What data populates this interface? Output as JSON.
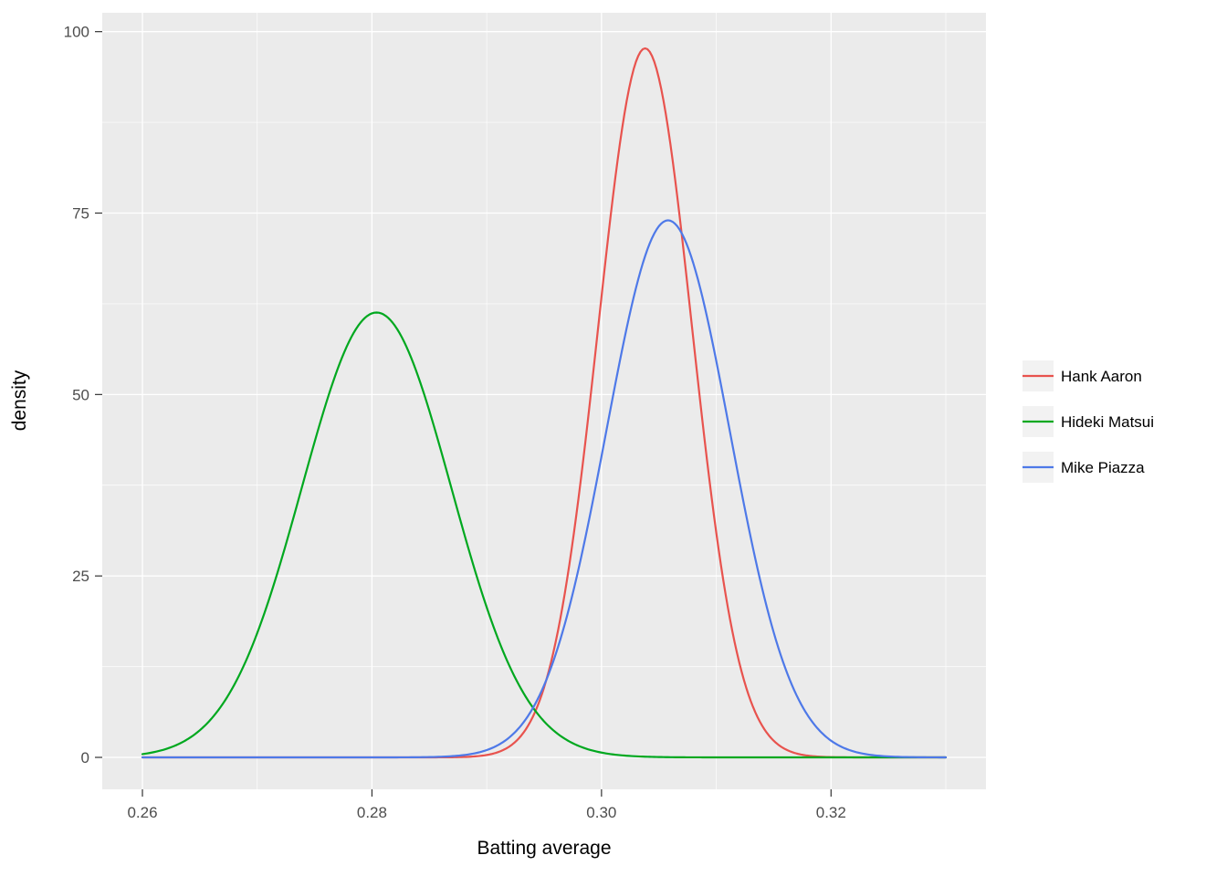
{
  "figure": {
    "background": "#ffffff",
    "panel_background": "#ebebeb",
    "grid_color": "#ffffff",
    "tick_color": "#333333",
    "tick_label_color": "#4d4d4d",
    "axis_title_color": "#000000",
    "legend_key_fill": "#f2f2f2"
  },
  "chart_data": {
    "type": "line",
    "subtype": "density-curves",
    "title": "",
    "xlabel": "Batting average",
    "ylabel": "density",
    "xlim": [
      0.2565,
      0.3335
    ],
    "ylim": [
      -4.4,
      102.6
    ],
    "grid": true,
    "legend_position": "right",
    "x_ticks": {
      "values": [
        0.26,
        0.28,
        0.3,
        0.32
      ],
      "labels": [
        "0.26",
        "0.28",
        "0.30",
        "0.32"
      ]
    },
    "x_minor_ticks": [
      0.27,
      0.29,
      0.31,
      0.33
    ],
    "y_ticks": {
      "values": [
        0,
        25,
        50,
        75,
        100
      ],
      "labels": [
        "0",
        "25",
        "50",
        "75",
        "100"
      ]
    },
    "y_minor_ticks": [
      12.5,
      37.5,
      62.5,
      87.5
    ],
    "sample_x": [
      0.26,
      0.265,
      0.27,
      0.275,
      0.28,
      0.285,
      0.29,
      0.295,
      0.3,
      0.305,
      0.31,
      0.315,
      0.32,
      0.325,
      0.33
    ],
    "series": [
      {
        "name": "Hank Aaron",
        "color": "#e8534e",
        "distribution": "normal-density",
        "mean": 0.3038,
        "sd": 0.00409,
        "peak_density": 97.7,
        "x_range": [
          0.26,
          0.33
        ],
        "sample_y": [
          0,
          0,
          0,
          0,
          0,
          0,
          0.3,
          9.7,
          63.4,
          93.6,
          31.0,
          2.3,
          0,
          0,
          0
        ]
      },
      {
        "name": "Hideki Matsui",
        "color": "#00a81f",
        "distribution": "normal-density",
        "mean": 0.2804,
        "sd": 0.00651,
        "peak_density": 61.3,
        "x_range": [
          0.26,
          0.33
        ],
        "sample_y": [
          0.5,
          3.7,
          17.1,
          43.4,
          61.2,
          47.7,
          20.6,
          5.0,
          0.7,
          0.1,
          0,
          0,
          0,
          0,
          0
        ]
      },
      {
        "name": "Mike Piazza",
        "color": "#4e79e8",
        "distribution": "normal-density",
        "mean": 0.3058,
        "sd": 0.00539,
        "peak_density": 74.0,
        "x_range": [
          0.26,
          0.33
        ],
        "sample_y": [
          0,
          0,
          0,
          0,
          0,
          0,
          1.0,
          9.9,
          41.5,
          73.2,
          54.6,
          17.2,
          2.3,
          0.1,
          0
        ]
      }
    ]
  }
}
